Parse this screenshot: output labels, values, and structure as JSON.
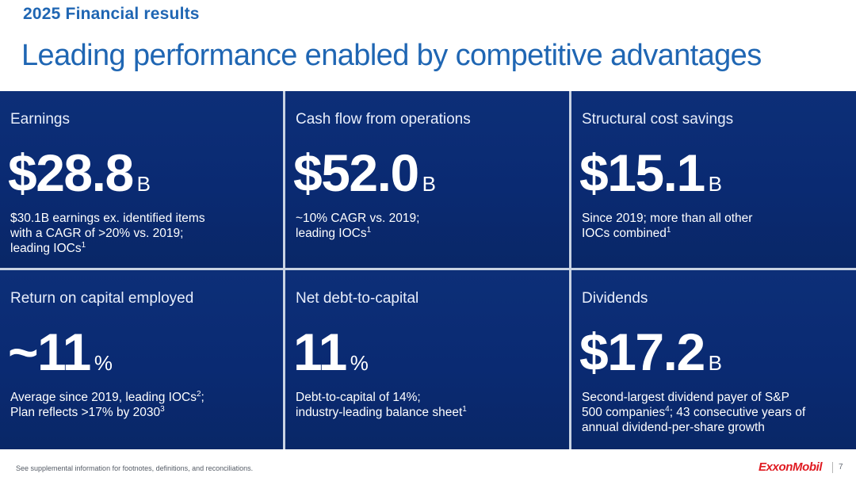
{
  "header": {
    "eyebrow": "2025 Financial results",
    "title": "Leading performance enabled by competitive advantages"
  },
  "tiles": [
    {
      "label": "Earnings",
      "value": "$28.8",
      "unit": "B",
      "desc_lines": [
        {
          "text": "$30.1B earnings ex. identified items"
        },
        {
          "text": "with a CAGR of >20% vs. 2019;"
        },
        {
          "text": "leading IOCs",
          "sup": "1"
        }
      ]
    },
    {
      "label": "Cash flow from operations",
      "value": "$52.0",
      "unit": "B",
      "desc_lines": [
        {
          "text": "~10% CAGR vs. 2019;"
        },
        {
          "text": "leading IOCs",
          "sup": "1"
        }
      ]
    },
    {
      "label": "Structural cost savings",
      "value": "$15.1",
      "unit": "B",
      "desc_lines": [
        {
          "text": "Since 2019; more than all other"
        },
        {
          "text": "IOCs combined",
          "sup": "1"
        }
      ]
    },
    {
      "label": "Return on capital employed",
      "value": "~11",
      "unit": "%",
      "desc_lines": [
        {
          "text": "Average since 2019, leading IOCs",
          "sup": "2",
          "after": ";"
        },
        {
          "text": "Plan reflects >17% by 2030",
          "sup": "3"
        }
      ]
    },
    {
      "label": "Net debt-to-capital",
      "value": "11",
      "unit": "%",
      "desc_lines": [
        {
          "text": "Debt-to-capital of 14%;"
        },
        {
          "text": "industry-leading balance sheet",
          "sup": "1"
        }
      ]
    },
    {
      "label": "Dividends",
      "value": "$17.2",
      "unit": "B",
      "desc_lines": [
        {
          "text": "Second-largest dividend payer of S&P"
        },
        {
          "text": "500 companies",
          "sup": "4",
          "after": "; 43 consecutive years of"
        },
        {
          "text": "annual dividend-per-share growth"
        }
      ]
    }
  ],
  "footer": {
    "note": "See supplemental information for footnotes, definitions, and reconciliations.",
    "logo_text": "ExxonMobil",
    "page_number": "7"
  },
  "colors": {
    "accent": "#1f66b3",
    "tile_bg": "#0b2c73",
    "logo_red": "#e01b22"
  }
}
